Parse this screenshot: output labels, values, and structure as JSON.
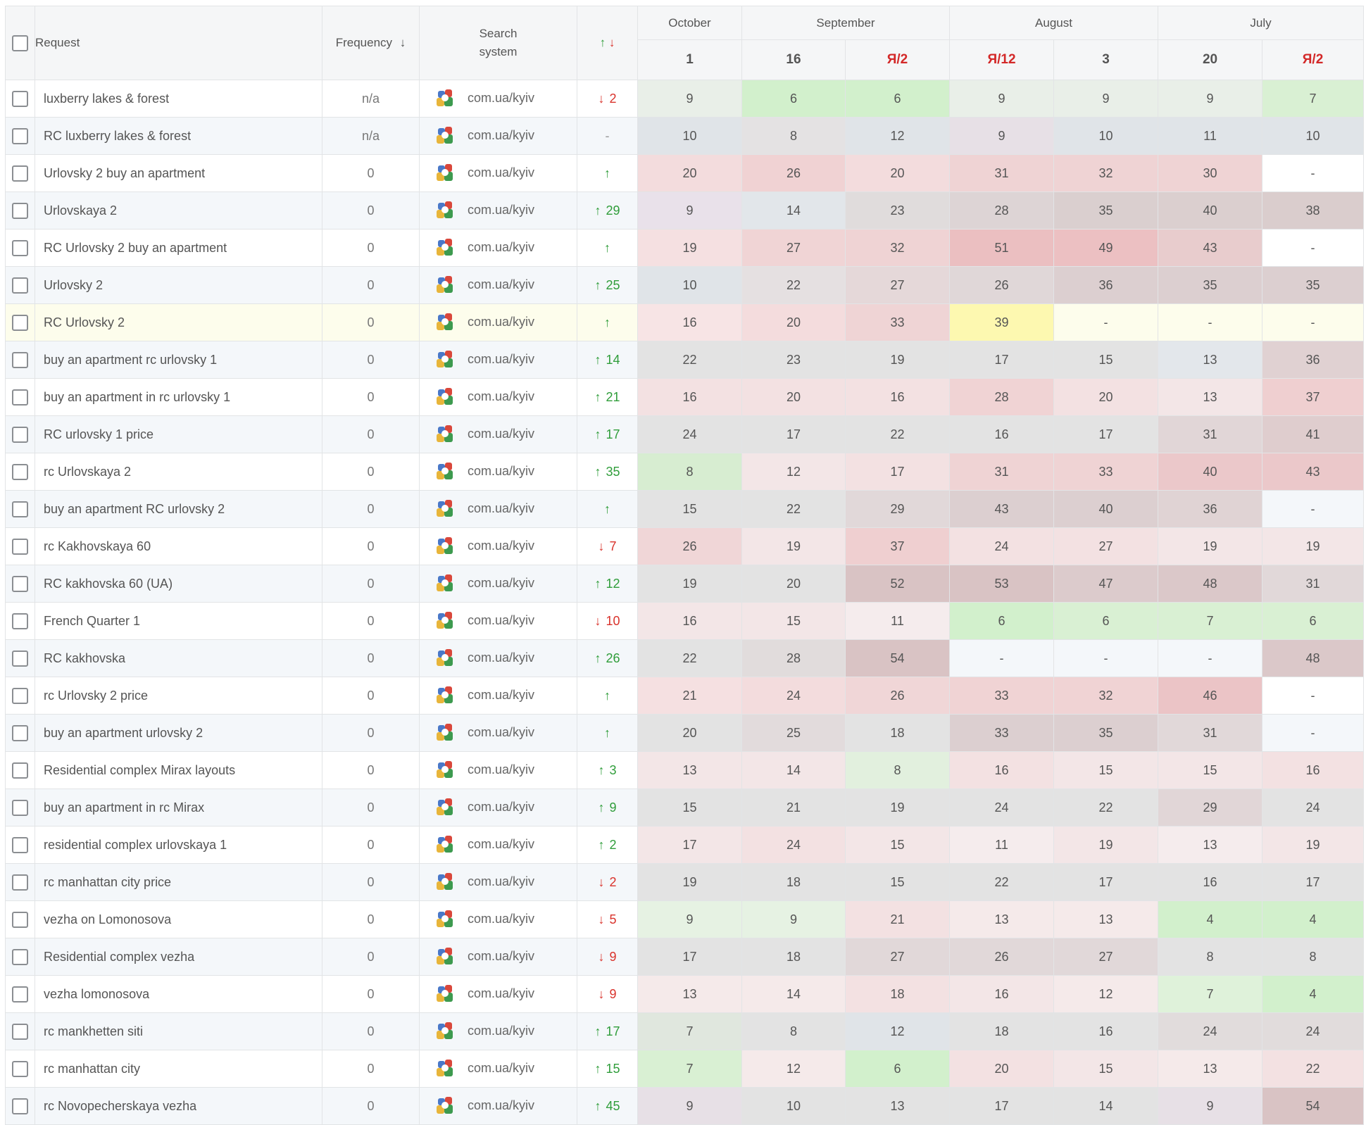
{
  "header": {
    "request": "Request",
    "frequency": "Frequency",
    "frequency_sort": "↓",
    "search_line1": "Search",
    "search_line2": "system",
    "change_up": "↑",
    "change_down": "↓",
    "months": [
      "October",
      "September",
      "August",
      "July"
    ],
    "dates": [
      "1",
      "16",
      "Я/2",
      "Я/12",
      "3",
      "20",
      "Я/2"
    ]
  },
  "colors": {
    "green_strong": "#d2f0cc",
    "green_light": "#e6f4e2",
    "red_strong": "#ebc0c2",
    "red": "#f1d4d5",
    "red_light": "#f7e6e7",
    "grey": "#e3e3e3",
    "greyblue": "#e3e7eb",
    "greyred": "#e5d8d9",
    "yellow": "#fdf8b0",
    "up": "#2f9d3a",
    "down": "#d9322b"
  },
  "rows": [
    {
      "request": "luxberry lakes & forest",
      "frequency": "n/a",
      "region": "com.ua/kyiv",
      "change": "2",
      "dir": "down",
      "values": [
        "9",
        "6",
        "6",
        "9",
        "9",
        "9",
        "7"
      ],
      "colors": [
        "#e9efe8",
        "#d2f0cc",
        "#d2f0cc",
        "#e9efe8",
        "#e9efe8",
        "#e9efe8",
        "#d9f0d3"
      ]
    },
    {
      "request": "RC luxberry lakes & forest",
      "frequency": "n/a",
      "region": "com.ua/kyiv",
      "change": "-",
      "dir": "flat",
      "values": [
        "10",
        "8",
        "12",
        "9",
        "10",
        "11",
        "10"
      ],
      "colors": [
        "#e0e4e8",
        "#e4e2e3",
        "#e0e4e8",
        "#e7e0e6",
        "#e0e4e8",
        "#e0e4e8",
        "#e0e4e8"
      ]
    },
    {
      "request": "Urlovsky 2 buy an apartment",
      "frequency": "0",
      "region": "com.ua/kyiv",
      "change": "",
      "dir": "up",
      "values": [
        "20",
        "26",
        "20",
        "31",
        "32",
        "30",
        "-"
      ],
      "colors": [
        "#f3dcdd",
        "#f0d2d3",
        "#f3dcdd",
        "#efd3d4",
        "#efd3d4",
        "#efd3d4",
        "#ffffff"
      ]
    },
    {
      "request": "Urlovskaya 2",
      "frequency": "0",
      "region": "com.ua/kyiv",
      "change": "29",
      "dir": "up",
      "values": [
        "9",
        "14",
        "23",
        "28",
        "35",
        "40",
        "38"
      ],
      "colors": [
        "#e9e1ea",
        "#e2e6ea",
        "#e0dcdc",
        "#ddd4d5",
        "#dacfcf",
        "#dbcfcf",
        "#dacdcd"
      ]
    },
    {
      "request": "RC Urlovsky 2 buy an apartment",
      "frequency": "0",
      "region": "com.ua/kyiv",
      "change": "",
      "dir": "up",
      "values": [
        "19",
        "27",
        "32",
        "51",
        "49",
        "43",
        "-"
      ],
      "colors": [
        "#f5e0e1",
        "#f0d4d5",
        "#efd3d4",
        "#ebbfc1",
        "#ecc0c2",
        "#e8cccd",
        "#ffffff"
      ]
    },
    {
      "request": "Urlovsky 2",
      "frequency": "0",
      "region": "com.ua/kyiv",
      "change": "25",
      "dir": "up",
      "values": [
        "10",
        "22",
        "27",
        "26",
        "36",
        "35",
        "35"
      ],
      "colors": [
        "#e0e4e8",
        "#e5e0e1",
        "#e5d8d9",
        "#e0d7d8",
        "#dccfd0",
        "#dccfd0",
        "#dccfd0"
      ]
    },
    {
      "request": "RC Urlovsky 2",
      "frequency": "0",
      "region": "com.ua/kyiv",
      "change": "",
      "dir": "up",
      "values": [
        "16",
        "20",
        "33",
        "39",
        "-",
        "-",
        "-"
      ],
      "colors": [
        "#f7e4e5",
        "#f4dcdd",
        "#efd4d5",
        "#fdf8b0",
        "#fdfdec",
        "#fdfdec",
        "#fdfdec"
      ]
    },
    {
      "request": "buy an apartment rc urlovsky 1",
      "frequency": "0",
      "region": "com.ua/kyiv",
      "change": "14",
      "dir": "up",
      "values": [
        "22",
        "23",
        "19",
        "17",
        "15",
        "13",
        "36"
      ],
      "colors": [
        "#e3e3e3",
        "#e3e3e3",
        "#e3e3e3",
        "#e3e3e3",
        "#e3e3e3",
        "#e3e7eb",
        "#e0d1d2"
      ]
    },
    {
      "request": "buy an apartment in rc urlovsky 1",
      "frequency": "0",
      "region": "com.ua/kyiv",
      "change": "21",
      "dir": "up",
      "values": [
        "16",
        "20",
        "16",
        "28",
        "20",
        "13",
        "37"
      ],
      "colors": [
        "#f3e1e2",
        "#f3e1e2",
        "#f3e1e2",
        "#f0d3d4",
        "#f3e1e2",
        "#f3e6e7",
        "#efcfd0"
      ]
    },
    {
      "request": "RC urlovsky 1 price",
      "frequency": "0",
      "region": "com.ua/kyiv",
      "change": "17",
      "dir": "up",
      "values": [
        "24",
        "17",
        "22",
        "16",
        "17",
        "31",
        "41"
      ],
      "colors": [
        "#e3e3e3",
        "#e3e3e3",
        "#e3e3e3",
        "#e3e3e3",
        "#e3e3e3",
        "#e1d6d7",
        "#dfcdce"
      ]
    },
    {
      "request": "rc Urlovskaya 2",
      "frequency": "0",
      "region": "com.ua/kyiv",
      "change": "35",
      "dir": "up",
      "values": [
        "8",
        "12",
        "17",
        "31",
        "33",
        "40",
        "43"
      ],
      "colors": [
        "#d7edd1",
        "#f3e6e7",
        "#f3e1e2",
        "#efd3d4",
        "#efd3d4",
        "#ebc8ca",
        "#ebc8ca"
      ]
    },
    {
      "request": "buy an apartment RC urlovsky 2",
      "frequency": "0",
      "region": "com.ua/kyiv",
      "change": "",
      "dir": "up",
      "values": [
        "15",
        "22",
        "29",
        "43",
        "40",
        "36",
        "-"
      ],
      "colors": [
        "#e3e3e3",
        "#e3e3e3",
        "#e1d8d9",
        "#dccfd0",
        "#dccfd0",
        "#e0d3d4",
        "#f4f7fa"
      ]
    },
    {
      "request": "rc Kakhovskaya 60",
      "frequency": "0",
      "region": "com.ua/kyiv",
      "change": "7",
      "dir": "down",
      "values": [
        "26",
        "19",
        "37",
        "24",
        "27",
        "19",
        "19"
      ],
      "colors": [
        "#f0d6d7",
        "#f3e6e7",
        "#efcfd0",
        "#f3e1e2",
        "#f3e1e2",
        "#f3e6e7",
        "#f3e6e7"
      ]
    },
    {
      "request": "RC kakhovska 60 (UA)",
      "frequency": "0",
      "region": "com.ua/kyiv",
      "change": "12",
      "dir": "up",
      "values": [
        "19",
        "20",
        "52",
        "53",
        "47",
        "48",
        "31"
      ],
      "colors": [
        "#e3e3e3",
        "#e3e3e3",
        "#d9c3c4",
        "#d9c3c4",
        "#dccbcc",
        "#dbc8c9",
        "#e1d8d9"
      ]
    },
    {
      "request": "French Quarter 1",
      "frequency": "0",
      "region": "com.ua/kyiv",
      "change": "10",
      "dir": "down",
      "values": [
        "16",
        "15",
        "11",
        "6",
        "6",
        "7",
        "6"
      ],
      "colors": [
        "#f3e6e7",
        "#f3e6e7",
        "#f5eced",
        "#d2f0cc",
        "#d9f0d3",
        "#d9f0d3",
        "#d9f0d3"
      ]
    },
    {
      "request": "RC kakhovska",
      "frequency": "0",
      "region": "com.ua/kyiv",
      "change": "26",
      "dir": "up",
      "values": [
        "22",
        "28",
        "54",
        "-",
        "-",
        "-",
        "48"
      ],
      "colors": [
        "#e3e3e3",
        "#e1dcdc",
        "#d9c3c4",
        "#f4f7fa",
        "#f4f7fa",
        "#f4f7fa",
        "#dbc8c9"
      ]
    },
    {
      "request": "rc Urlovsky 2 price",
      "frequency": "0",
      "region": "com.ua/kyiv",
      "change": "",
      "dir": "up",
      "values": [
        "21",
        "24",
        "26",
        "33",
        "32",
        "46",
        "-"
      ],
      "colors": [
        "#f5e0e1",
        "#f3dcdd",
        "#f0d6d7",
        "#f0d3d4",
        "#f0d3d4",
        "#ebc4c6",
        "#ffffff"
      ]
    },
    {
      "request": "buy an apartment urlovsky 2",
      "frequency": "0",
      "region": "com.ua/kyiv",
      "change": "",
      "dir": "up",
      "values": [
        "20",
        "25",
        "18",
        "33",
        "35",
        "31",
        "-"
      ],
      "colors": [
        "#e3e3e3",
        "#e2dbdc",
        "#e3e3e3",
        "#dccfd0",
        "#dccfd0",
        "#e1d8d9",
        "#f4f7fa"
      ]
    },
    {
      "request": "Residential complex Mirax layouts",
      "frequency": "0",
      "region": "com.ua/kyiv",
      "change": "3",
      "dir": "up",
      "values": [
        "13",
        "14",
        "8",
        "16",
        "15",
        "15",
        "16"
      ],
      "colors": [
        "#f3e6e7",
        "#f3e6e7",
        "#e2f0de",
        "#f3e1e2",
        "#f3e6e7",
        "#f3e6e7",
        "#f3e1e2"
      ]
    },
    {
      "request": "buy an apartment in rc Mirax",
      "frequency": "0",
      "region": "com.ua/kyiv",
      "change": "9",
      "dir": "up",
      "values": [
        "15",
        "21",
        "19",
        "24",
        "22",
        "29",
        "24"
      ],
      "colors": [
        "#e3e3e3",
        "#e3e3e3",
        "#e3e3e3",
        "#e3e3e3",
        "#e3e3e3",
        "#e1d6d7",
        "#e3e3e3"
      ]
    },
    {
      "request": "residential complex urlovskaya 1",
      "frequency": "0",
      "region": "com.ua/kyiv",
      "change": "2",
      "dir": "up",
      "values": [
        "17",
        "24",
        "15",
        "11",
        "19",
        "13",
        "19"
      ],
      "colors": [
        "#f3e6e7",
        "#f3e1e2",
        "#f3e6e7",
        "#f5eced",
        "#f3e6e7",
        "#f5eced",
        "#f3e6e7"
      ]
    },
    {
      "request": "rc manhattan city price",
      "frequency": "0",
      "region": "com.ua/kyiv",
      "change": "2",
      "dir": "down",
      "values": [
        "19",
        "18",
        "15",
        "22",
        "17",
        "16",
        "17"
      ],
      "colors": [
        "#e3e3e3",
        "#e3e3e3",
        "#e3e3e3",
        "#e3e3e3",
        "#e3e3e3",
        "#e3e3e3",
        "#e3e3e3"
      ]
    },
    {
      "request": "vezha on Lomonosova",
      "frequency": "0",
      "region": "com.ua/kyiv",
      "change": "5",
      "dir": "down",
      "values": [
        "9",
        "9",
        "21",
        "13",
        "13",
        "4",
        "4"
      ],
      "colors": [
        "#e6f2e3",
        "#e6f2e3",
        "#f3e1e2",
        "#f5eaea",
        "#f5eaea",
        "#d2f0cc",
        "#d2f0cc"
      ]
    },
    {
      "request": "Residential complex vezha",
      "frequency": "0",
      "region": "com.ua/kyiv",
      "change": "9",
      "dir": "down",
      "values": [
        "17",
        "18",
        "27",
        "26",
        "27",
        "8",
        "8"
      ],
      "colors": [
        "#e3e3e3",
        "#e3e3e3",
        "#e1d8d9",
        "#e1d8d9",
        "#e1d8d9",
        "#e3e3e3",
        "#e3e3e3"
      ]
    },
    {
      "request": "vezha lomonosova",
      "frequency": "0",
      "region": "com.ua/kyiv",
      "change": "9",
      "dir": "down",
      "values": [
        "13",
        "14",
        "18",
        "16",
        "12",
        "7",
        "4"
      ],
      "colors": [
        "#f5eaea",
        "#f5eaea",
        "#f3e1e2",
        "#f3e6e7",
        "#f5eaea",
        "#dff2da",
        "#d2f0cc"
      ]
    },
    {
      "request": "rc mankhetten siti",
      "frequency": "0",
      "region": "com.ua/kyiv",
      "change": "17",
      "dir": "up",
      "values": [
        "7",
        "8",
        "12",
        "18",
        "16",
        "24",
        "24"
      ],
      "colors": [
        "#e0e7de",
        "#e3e3e3",
        "#e0e4e8",
        "#e3e3e3",
        "#e3e3e3",
        "#e1dcdc",
        "#e1dcdc"
      ]
    },
    {
      "request": "rc manhattan city",
      "frequency": "0",
      "region": "com.ua/kyiv",
      "change": "15",
      "dir": "up",
      "values": [
        "7",
        "12",
        "6",
        "20",
        "15",
        "13",
        "22"
      ],
      "colors": [
        "#d9f0d3",
        "#f5eaea",
        "#d2f0cc",
        "#f3e1e2",
        "#f3e6e7",
        "#f5eaea",
        "#f3e1e2"
      ]
    },
    {
      "request": "rc Novopecherskaya vezha",
      "frequency": "0",
      "region": "com.ua/kyiv",
      "change": "45",
      "dir": "up",
      "values": [
        "9",
        "10",
        "13",
        "17",
        "14",
        "9",
        "54"
      ],
      "colors": [
        "#e7e0e6",
        "#e3e3e3",
        "#e3e3e3",
        "#e3e3e3",
        "#e3e3e3",
        "#e7e0e6",
        "#d9c3c4"
      ]
    }
  ]
}
